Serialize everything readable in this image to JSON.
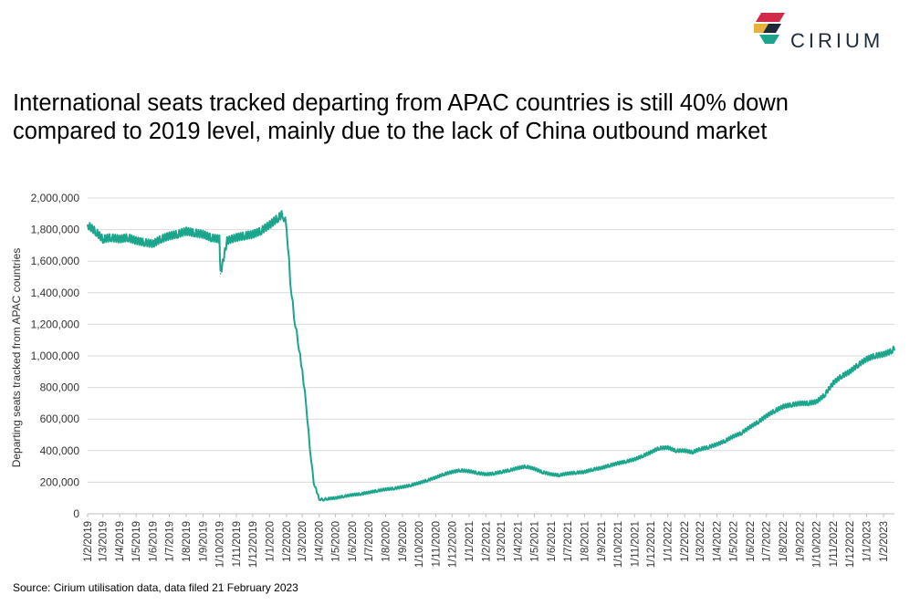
{
  "logo": {
    "text": "CIRIUM",
    "colors": [
      "#e8b33a",
      "#d12c47",
      "#1d2a39",
      "#1aa58c"
    ]
  },
  "title": "International seats tracked departing from APAC countries is still 40% down compared to 2019 level, mainly due to the lack of China outbound market",
  "source": "Source: Cirium utilisation data, data filed 21 February 2023",
  "chart_data": {
    "type": "line",
    "title": "International seats tracked departing from APAC countries is still 40% down compared to 2019 level, mainly due to the lack of China outbound market",
    "xlabel": "",
    "ylabel": "Departing seats tracked from APAC countries",
    "ylim": [
      0,
      2000000
    ],
    "yticks": [
      "0",
      "200,000",
      "400,000",
      "600,000",
      "800,000",
      "1,000,000",
      "1,200,000",
      "1,400,000",
      "1,600,000",
      "1,800,000",
      "2,000,000"
    ],
    "xticks": [
      "1/2/2019",
      "1/3/2019",
      "1/4/2019",
      "1/5/2019",
      "1/6/2019",
      "1/7/2019",
      "1/8/2019",
      "1/9/2019",
      "1/10/2019",
      "1/11/2019",
      "1/12/2019",
      "1/1/2020",
      "1/2/2020",
      "1/3/2020",
      "1/4/2020",
      "1/5/2020",
      "1/6/2020",
      "1/7/2020",
      "1/8/2020",
      "1/9/2020",
      "1/10/2020",
      "1/11/2020",
      "1/12/2020",
      "1/1/2021",
      "1/2/2021",
      "1/3/2021",
      "1/4/2021",
      "1/5/2021",
      "1/6/2021",
      "1/7/2021",
      "1/8/2021",
      "1/9/2021",
      "1/10/2021",
      "1/11/2021",
      "1/12/2021",
      "1/1/2022",
      "1/2/2022",
      "1/3/2022",
      "1/4/2022",
      "1/5/2022",
      "1/6/2022",
      "1/7/2022",
      "1/8/2022",
      "1/9/2022",
      "1/10/2022",
      "1/11/2022",
      "1/12/2022",
      "1/1/2023",
      "1/2/2023"
    ],
    "grid": true,
    "legend": "none",
    "line_color": "#1aa58c",
    "series": [
      {
        "x": [
          "1/2/2019",
          "15/2/2019",
          "1/3/2019",
          "15/3/2019",
          "1/4/2019",
          "15/4/2019",
          "1/5/2019",
          "15/5/2019",
          "1/6/2019",
          "15/6/2019",
          "1/7/2019",
          "15/7/2019",
          "1/8/2019",
          "15/8/2019",
          "1/9/2019",
          "15/9/2019",
          "1/10/2019",
          "3/10/2019",
          "15/10/2019",
          "1/11/2019",
          "15/11/2019",
          "1/12/2019",
          "15/12/2019",
          "1/1/2020",
          "15/1/2020",
          "25/1/2020",
          "1/2/2020",
          "8/2/2020",
          "15/2/2020",
          "22/2/2020",
          "1/3/2020",
          "8/3/2020",
          "15/3/2020",
          "22/3/2020",
          "1/4/2020",
          "8/4/2020",
          "15/4/2020",
          "1/5/2020",
          "15/5/2020",
          "1/6/2020",
          "15/6/2020",
          "1/7/2020",
          "15/7/2020",
          "1/8/2020",
          "15/8/2020",
          "1/9/2020",
          "15/9/2020",
          "1/10/2020",
          "15/10/2020",
          "1/11/2020",
          "15/11/2020",
          "1/12/2020",
          "15/12/2020",
          "1/1/2021",
          "15/1/2021",
          "1/2/2021",
          "15/2/2021",
          "1/3/2021",
          "15/3/2021",
          "1/4/2021",
          "15/4/2021",
          "1/5/2021",
          "15/5/2021",
          "1/6/2021",
          "15/6/2021",
          "1/7/2021",
          "15/7/2021",
          "1/8/2021",
          "15/8/2021",
          "1/9/2021",
          "15/9/2021",
          "1/10/2021",
          "15/10/2021",
          "1/11/2021",
          "15/11/2021",
          "1/12/2021",
          "15/12/2021",
          "1/1/2022",
          "15/1/2022",
          "1/2/2022",
          "15/2/2022",
          "1/3/2022",
          "15/3/2022",
          "1/4/2022",
          "15/4/2022",
          "1/5/2022",
          "15/5/2022",
          "1/6/2022",
          "15/6/2022",
          "1/7/2022",
          "15/7/2022",
          "1/8/2022",
          "15/8/2022",
          "1/9/2022",
          "15/9/2022",
          "1/10/2022",
          "15/10/2022",
          "1/11/2022",
          "15/11/2022",
          "1/12/2022",
          "15/12/2022",
          "1/1/2023",
          "15/1/2023",
          "1/2/2023",
          "15/2/2023",
          "21/2/2023"
        ],
        "values": [
          1830000,
          1790000,
          1740000,
          1750000,
          1740000,
          1750000,
          1730000,
          1720000,
          1710000,
          1740000,
          1760000,
          1770000,
          1790000,
          1780000,
          1770000,
          1750000,
          1740000,
          1520000,
          1730000,
          1750000,
          1760000,
          1770000,
          1790000,
          1830000,
          1870000,
          1900000,
          1830000,
          1480000,
          1250000,
          1100000,
          900000,
          700000,
          420000,
          200000,
          95000,
          90000,
          95000,
          100000,
          110000,
          120000,
          125000,
          135000,
          145000,
          155000,
          160000,
          170000,
          180000,
          195000,
          210000,
          230000,
          250000,
          265000,
          275000,
          270000,
          260000,
          250000,
          255000,
          265000,
          275000,
          290000,
          300000,
          285000,
          265000,
          250000,
          245000,
          255000,
          260000,
          265000,
          280000,
          290000,
          305000,
          320000,
          330000,
          345000,
          365000,
          390000,
          415000,
          420000,
          400000,
          400000,
          390000,
          410000,
          420000,
          440000,
          460000,
          490000,
          510000,
          550000,
          580000,
          620000,
          650000,
          680000,
          690000,
          700000,
          700000,
          710000,
          750000,
          830000,
          870000,
          900000,
          940000,
          980000,
          1000000,
          1010000,
          1030000,
          1050000
        ]
      }
    ]
  }
}
